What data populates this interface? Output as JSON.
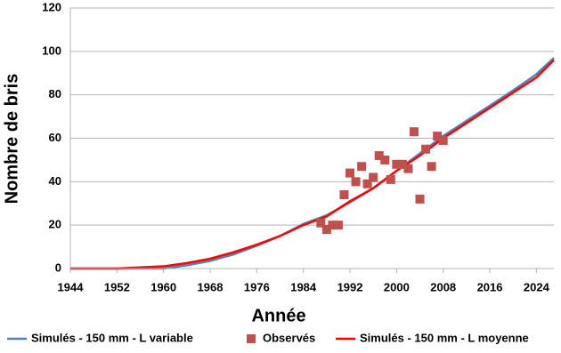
{
  "chart_data": {
    "type": "line",
    "xlabel": "Année",
    "ylabel": "Nombre de bris",
    "xlim": [
      1944,
      2027
    ],
    "xticks": [
      1944,
      1952,
      1960,
      1968,
      1976,
      1984,
      1992,
      2000,
      2008,
      2016,
      2024
    ],
    "ylim": [
      0,
      120
    ],
    "yticks": [
      0,
      20,
      40,
      60,
      80,
      100,
      120
    ],
    "grid": true,
    "legend": "bottom",
    "series": [
      {
        "name": "Simulés - 150 mm - L variable",
        "type": "line",
        "color": "#4f81bd",
        "x": [
          1944,
          1948,
          1952,
          1956,
          1960,
          1964,
          1968,
          1972,
          1976,
          1980,
          1984,
          1988,
          1992,
          1996,
          2000,
          2004,
          2008,
          2012,
          2016,
          2020,
          2024,
          2027
        ],
        "values": [
          0,
          0,
          0,
          0,
          0,
          1.5,
          3.5,
          6.5,
          10.5,
          15,
          20.5,
          24.5,
          30.5,
          37,
          45,
          53,
          61,
          68,
          75,
          82,
          89.5,
          97
        ]
      },
      {
        "name": "Observés",
        "type": "scatter",
        "color": "#c0504d",
        "x": [
          1987,
          1988,
          1989,
          1990,
          1991,
          1992,
          1993,
          1994,
          1995,
          1996,
          1997,
          1998,
          1999,
          2000,
          2001,
          2002,
          2003,
          2004,
          2005,
          2006,
          2007,
          2008
        ],
        "values": [
          21,
          18,
          20,
          20,
          34,
          44,
          40,
          47,
          39,
          42,
          52,
          50,
          41,
          48,
          48,
          46,
          63,
          32,
          55,
          47,
          61,
          59
        ]
      },
      {
        "name": "Simulés - 150 mm - L moyenne",
        "type": "line",
        "color": "#ff0000",
        "x": [
          1944,
          1948,
          1952,
          1956,
          1960,
          1964,
          1968,
          1972,
          1976,
          1980,
          1984,
          1988,
          1992,
          1996,
          2000,
          2004,
          2008,
          2012,
          2016,
          2020,
          2024,
          2027
        ],
        "values": [
          0,
          0,
          0,
          0.5,
          1,
          2.5,
          4.5,
          7.5,
          11,
          15,
          20,
          24,
          31,
          37,
          45,
          52,
          60,
          67,
          74,
          81,
          88,
          96
        ]
      }
    ]
  }
}
